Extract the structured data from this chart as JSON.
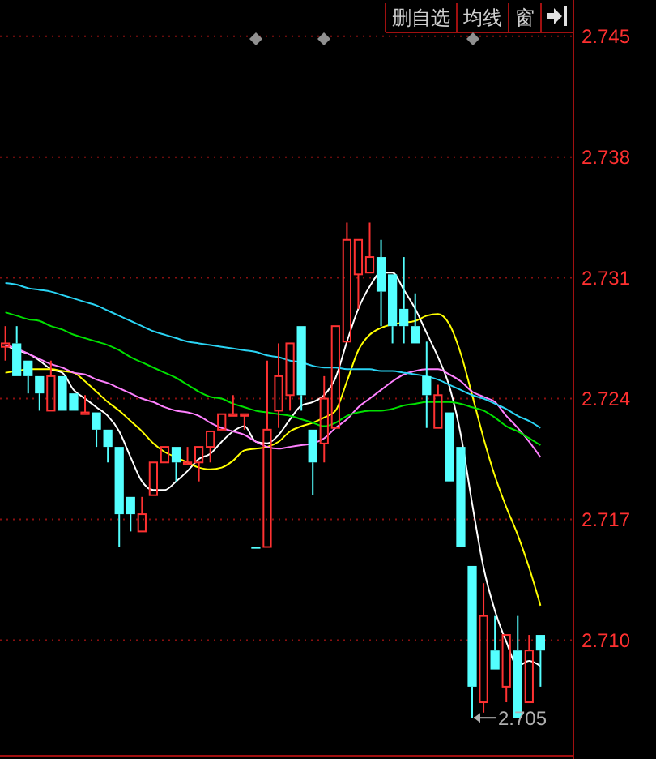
{
  "chart_data": {
    "type": "candlestick",
    "categories": [
      null,
      null,
      null,
      null,
      null,
      null,
      null,
      null,
      null,
      null,
      null,
      null,
      null,
      null,
      null,
      null,
      null,
      null,
      null,
      null,
      null,
      null,
      null,
      null,
      null,
      null,
      null,
      null,
      null,
      null,
      null,
      null,
      null,
      null,
      null,
      null,
      null,
      null,
      null,
      null,
      null,
      null,
      null,
      null,
      null,
      null,
      null,
      null
    ],
    "ylim": [
      2.7033,
      2.7471
    ],
    "yticks": [
      2.745,
      2.738,
      2.731,
      2.724,
      2.717,
      {
        "value": 2.71,
        "label": "2.710"
      }
    ],
    "grid": "y",
    "annotations": [
      "删自选",
      "均线",
      "窗",
      {
        "text": "2.705",
        "y": 2.7055
      }
    ],
    "series": [
      {
        "type": "line",
        "color": "#ffffff",
        "values": [
          2.7271,
          2.7268,
          2.7266,
          2.7262,
          2.7257,
          2.7255,
          2.7245,
          2.724,
          2.7235,
          2.723,
          2.7221,
          2.7206,
          2.7192,
          2.7187,
          2.7187,
          2.7192,
          2.7198,
          2.7205,
          2.7208,
          2.7215,
          2.7221,
          2.7224,
          2.7215,
          2.7214,
          2.7219,
          2.7228,
          2.7236,
          2.7238,
          2.7242,
          2.7252,
          2.7273,
          2.7292,
          2.7305,
          2.7313,
          2.7313,
          2.7303,
          2.7292,
          2.7278,
          2.7264,
          2.7247,
          2.7219,
          2.7179,
          2.7142,
          2.7117,
          2.7099,
          2.7085,
          2.7088,
          2.7085
        ]
      },
      {
        "type": "line",
        "color": "#ffff00",
        "values": [
          2.7255,
          2.7256,
          2.7257,
          2.7257,
          2.7257,
          2.7256,
          2.7255,
          2.725,
          2.7244,
          2.7238,
          2.7233,
          2.7227,
          2.7221,
          2.7214,
          2.7209,
          2.7206,
          2.7203,
          2.72,
          2.7199,
          2.72,
          2.7204,
          2.721,
          2.7211,
          2.7212,
          2.7215,
          2.7221,
          2.7224,
          2.7226,
          2.7229,
          2.7233,
          2.725,
          2.7268,
          2.7277,
          2.7281,
          2.7283,
          2.7284,
          2.7285,
          2.7288,
          2.7289,
          2.7283,
          2.7266,
          2.7242,
          2.7217,
          2.7195,
          2.7177,
          2.7161,
          2.7142,
          2.712
        ]
      },
      {
        "type": "line",
        "color": "#ff80ff",
        "values": [
          2.7271,
          2.7269,
          2.7266,
          2.7263,
          2.726,
          2.7258,
          2.7255,
          2.7254,
          2.7251,
          2.7249,
          2.7246,
          2.7243,
          2.724,
          2.7238,
          2.7235,
          2.7233,
          2.7232,
          2.723,
          2.7226,
          2.7223,
          2.7221,
          2.7219,
          2.7215,
          2.7212,
          2.7211,
          2.7212,
          2.7213,
          2.7214,
          2.7217,
          2.7223,
          2.7228,
          2.7235,
          2.724,
          2.7245,
          2.725,
          2.7254,
          2.7256,
          2.7257,
          2.7257,
          2.7254,
          2.725,
          2.7244,
          2.7241,
          2.7238,
          2.723,
          2.7223,
          2.7215,
          2.7206
        ]
      },
      {
        "type": "line",
        "color": "#00e000",
        "values": [
          2.729,
          2.7288,
          2.7286,
          2.7285,
          2.7282,
          2.728,
          2.7277,
          2.7275,
          2.7273,
          2.7271,
          2.7268,
          2.7264,
          2.7261,
          2.7258,
          2.7255,
          2.7252,
          2.7248,
          2.7244,
          2.7241,
          2.724,
          2.7237,
          2.7235,
          2.7233,
          2.7232,
          2.7231,
          2.723,
          2.7228,
          2.7226,
          2.7224,
          2.7226,
          2.723,
          2.7232,
          2.7233,
          2.7233,
          2.7234,
          2.7236,
          2.7237,
          2.7238,
          2.7238,
          2.7238,
          2.7237,
          2.7235,
          2.7233,
          2.7229,
          2.7224,
          2.7221,
          2.7217,
          2.7213
        ]
      },
      {
        "type": "line",
        "color": "#2ad4f4",
        "values": [
          2.7307,
          2.7306,
          2.7304,
          2.7303,
          2.7302,
          2.73,
          2.7298,
          2.7296,
          2.7294,
          2.7291,
          2.7288,
          2.7285,
          2.7282,
          2.7279,
          2.7277,
          2.7275,
          2.7273,
          2.7272,
          2.7271,
          2.727,
          2.7269,
          2.7268,
          2.7267,
          2.7265,
          2.7264,
          2.7262,
          2.7261,
          2.7259,
          2.7258,
          2.7258,
          2.7257,
          2.7257,
          2.7257,
          2.7256,
          2.7256,
          2.7255,
          2.7254,
          2.7253,
          2.7251,
          2.7248,
          2.7245,
          2.7242,
          2.724,
          2.7237,
          2.7234,
          2.723,
          2.7227,
          2.7223
        ]
      },
      {
        "ohlc": [
          [
            2.727,
            2.7282,
            2.7262,
            2.7272
          ],
          [
            2.7272,
            2.7282,
            2.7253,
            2.7253
          ],
          [
            2.7262,
            2.7262,
            2.7243,
            2.7253
          ],
          [
            2.7253,
            2.7253,
            2.7233,
            2.7243
          ],
          [
            2.7233,
            2.7262,
            2.7233,
            2.7253
          ],
          [
            2.7253,
            2.7253,
            2.7233,
            2.7233
          ],
          [
            2.7243,
            2.7243,
            2.7233,
            2.7233
          ],
          [
            2.7231,
            2.7242,
            2.7231,
            2.7232
          ],
          [
            2.7232,
            2.7232,
            2.7212,
            2.7222
          ],
          [
            2.7222,
            2.7222,
            2.7203,
            2.7212
          ],
          [
            2.7212,
            2.7212,
            2.7154,
            2.7173
          ],
          [
            2.7183,
            2.7183,
            2.7163,
            2.7173
          ],
          [
            2.7163,
            2.7183,
            2.7163,
            2.7173
          ],
          [
            2.7184,
            2.7203,
            2.7184,
            2.7203
          ],
          [
            2.7203,
            2.7212,
            2.7203,
            2.7212
          ],
          [
            2.7212,
            2.7212,
            2.7192,
            2.7203
          ],
          [
            2.7202,
            2.7212,
            2.7202,
            2.7203
          ],
          [
            2.7203,
            2.7212,
            2.7192,
            2.7212
          ],
          [
            2.7212,
            2.7221,
            2.7203,
            2.7221
          ],
          [
            2.7222,
            2.7231,
            2.7222,
            2.7231
          ],
          [
            2.723,
            2.7242,
            2.723,
            2.7231
          ],
          [
            2.723,
            2.7231,
            2.7222,
            2.7231
          ],
          [
            2.7154,
            2.7154,
            2.7153,
            2.7153
          ],
          [
            2.7154,
            2.7262,
            2.7154,
            2.7222
          ],
          [
            2.7233,
            2.7272,
            2.7223,
            2.7253
          ],
          [
            2.7242,
            2.7272,
            2.7233,
            2.7272
          ],
          [
            2.7282,
            2.7282,
            2.7233,
            2.7242
          ],
          [
            2.7222,
            2.7222,
            2.7184,
            2.7203
          ],
          [
            2.7214,
            2.7253,
            2.7203,
            2.724
          ],
          [
            2.7223,
            2.7282,
            2.7223,
            2.7282
          ],
          [
            2.7273,
            2.7342,
            2.7273,
            2.7332
          ],
          [
            2.7312,
            2.7332,
            2.7292,
            2.7332
          ],
          [
            2.7313,
            2.7342,
            2.7313,
            2.7322
          ],
          [
            2.7322,
            2.7332,
            2.7282,
            2.7302
          ],
          [
            2.7312,
            2.7312,
            2.7272,
            2.7282
          ],
          [
            2.7292,
            2.7322,
            2.7272,
            2.7282
          ],
          [
            2.7282,
            2.7301,
            2.7272,
            2.7272
          ],
          [
            2.7253,
            2.7273,
            2.7223,
            2.7242
          ],
          [
            2.7223,
            2.7248,
            2.7223,
            2.7242
          ],
          [
            2.7232,
            2.7232,
            2.7192,
            2.7192
          ],
          [
            2.7212,
            2.7212,
            2.7154,
            2.7154
          ],
          [
            2.7143,
            2.7143,
            2.7055,
            2.7073
          ],
          [
            2.7064,
            2.7133,
            2.7058,
            2.7114
          ],
          [
            2.7094,
            2.7114,
            2.7083,
            2.7083
          ],
          [
            2.7073,
            2.7103,
            2.7064,
            2.7103
          ],
          [
            2.7094,
            2.7114,
            2.7055,
            2.7055
          ],
          [
            2.7064,
            2.7103,
            2.7064,
            2.7094
          ],
          [
            2.7103,
            2.7103,
            2.7073,
            2.7094
          ]
        ],
        "colors": [
          "#ff3232",
          "#54ffff",
          "#54ffff",
          "#54ffff",
          "#ff3232",
          "#54ffff",
          "#54ffff",
          "#ff3232",
          "#54ffff",
          "#54ffff",
          "#54ffff",
          "#54ffff",
          "#ff3232",
          "#ff3232",
          "#ff3232",
          "#54ffff",
          "#ff3232",
          "#ff3232",
          "#ff3232",
          "#ff3232",
          "#ff3232",
          "#ff3232",
          "#54ffff",
          "#ff3232",
          "#ff3232",
          "#ff3232",
          "#54ffff",
          "#54ffff",
          "#ff3232",
          "#ff3232",
          "#ff3232",
          "#ff3232",
          "#ff3232",
          "#54ffff",
          "#54ffff",
          "#54ffff",
          "#54ffff",
          "#54ffff",
          "#ff3232",
          "#54ffff",
          "#54ffff",
          "#54ffff",
          "#ff3232",
          "#54ffff",
          "#ff3232",
          "#54ffff",
          "#ff3232",
          "#54ffff"
        ]
      }
    ]
  }
}
